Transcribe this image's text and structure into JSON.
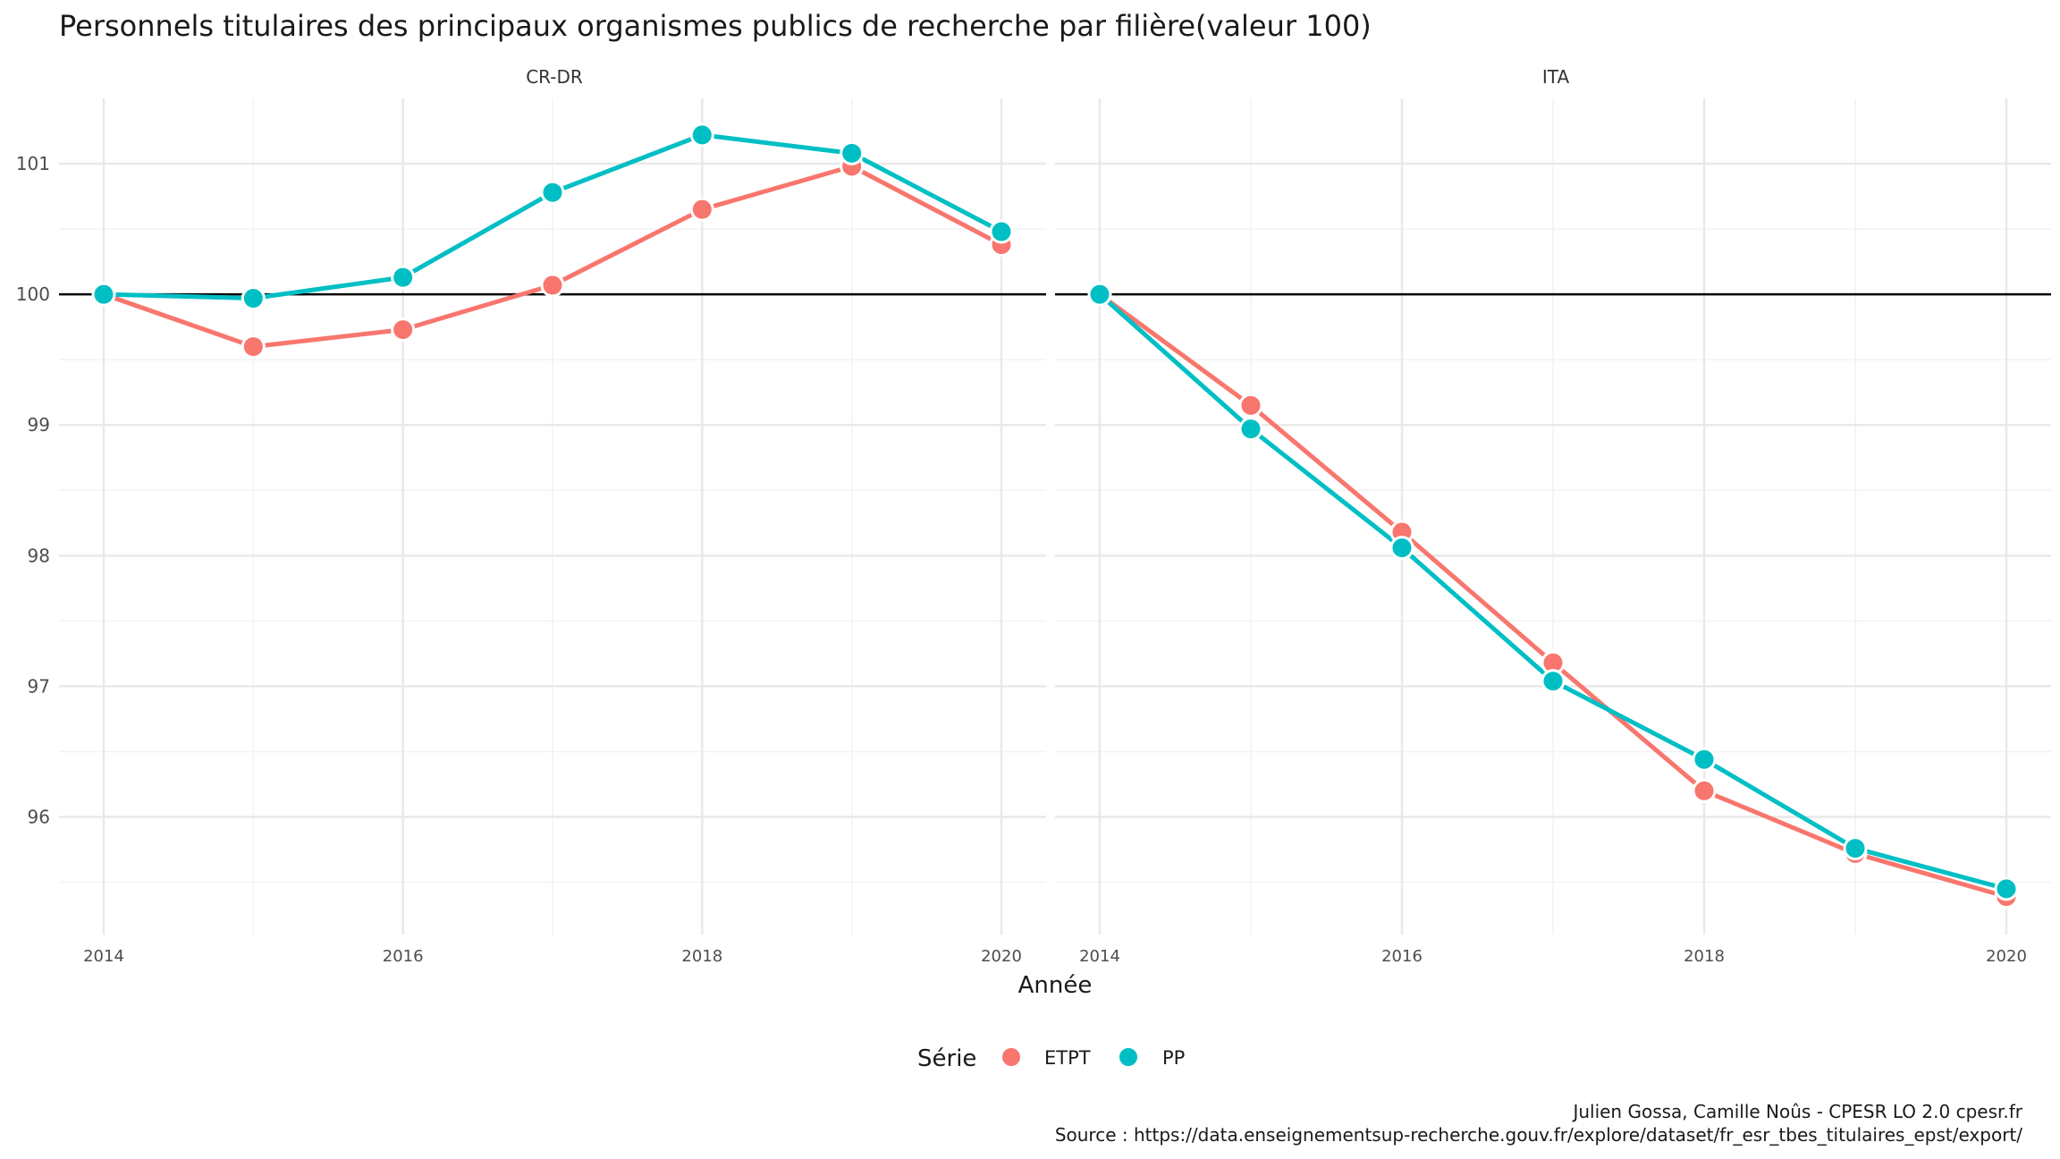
{
  "chart_data": {
    "type": "line",
    "title": "Personnels titulaires des principaux organismes publics de recherche par filière(valeur 100)",
    "xlabel": "Année",
    "ylabel": "",
    "x": [
      2014,
      2015,
      2016,
      2017,
      2018,
      2019,
      2020
    ],
    "x_ticks": [
      "2014",
      "2016",
      "2018",
      "2020"
    ],
    "y_ticks": [
      "96",
      "97",
      "98",
      "99",
      "100",
      "101"
    ],
    "ylim": [
      95.1,
      101.5
    ],
    "reference_line": 100,
    "grid": true,
    "legend": {
      "title": "Série",
      "position": "bottom",
      "entries": [
        {
          "label": "ETPT",
          "color": "#F8766D"
        },
        {
          "label": "PP",
          "color": "#00BFC4"
        }
      ]
    },
    "panels": [
      {
        "label": "CR-DR",
        "series": [
          {
            "name": "ETPT",
            "color": "#F8766D",
            "values": [
              100.0,
              99.6,
              99.73,
              100.07,
              100.65,
              100.98,
              100.38
            ]
          },
          {
            "name": "PP",
            "color": "#00BFC4",
            "values": [
              100.0,
              99.97,
              100.13,
              100.78,
              101.22,
              101.08,
              100.48
            ]
          }
        ]
      },
      {
        "label": "ITA",
        "series": [
          {
            "name": "ETPT",
            "color": "#F8766D",
            "values": [
              100.0,
              99.15,
              98.18,
              97.18,
              96.2,
              95.72,
              95.39
            ]
          },
          {
            "name": "PP",
            "color": "#00BFC4",
            "values": [
              100.0,
              98.97,
              98.06,
              97.04,
              96.44,
              95.76,
              95.45
            ]
          }
        ]
      }
    ],
    "caption": [
      "Julien Gossa, Camille Noûs - CPESR LO 2.0 cpesr.fr",
      "Source : https://data.enseignementsup-recherche.gouv.fr/explore/dataset/fr_esr_tbes_titulaires_epst/export/"
    ]
  }
}
